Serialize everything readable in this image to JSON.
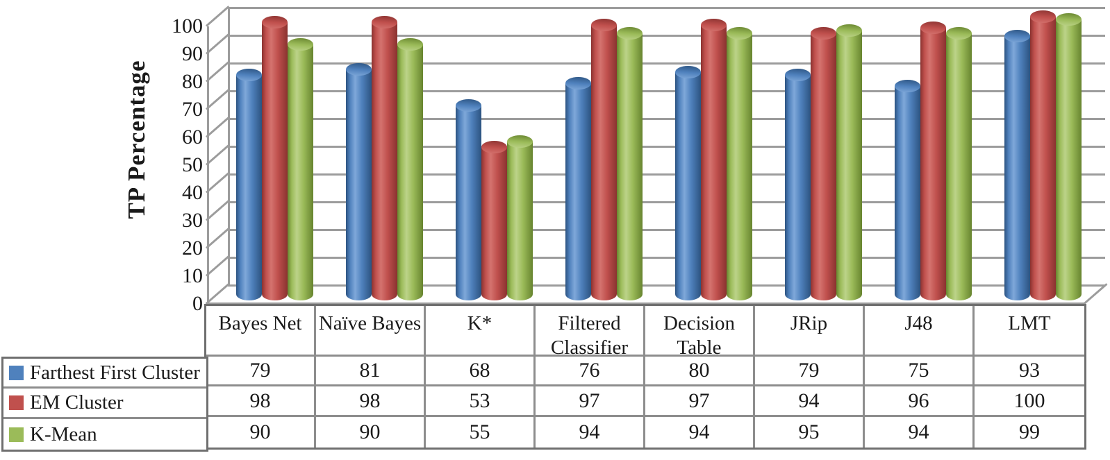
{
  "chart_data": {
    "type": "bar",
    "subtype": "3d-cylinder",
    "title": "",
    "xlabel": "",
    "ylabel": "TP Percentage",
    "ylim": [
      0,
      100
    ],
    "ytick_interval": 10,
    "yticks": [
      0,
      10,
      20,
      30,
      40,
      50,
      60,
      70,
      80,
      90,
      100
    ],
    "grid": true,
    "legend_position": "table-left",
    "categories": [
      "Bayes Net",
      "Naïve Bayes",
      "K*",
      "Filtered Classifier",
      "Decision Table",
      "JRip",
      "J48",
      "LMT"
    ],
    "series": [
      {
        "name": "Farthest First Cluster",
        "color": "#4F81BD",
        "color_light": "#7FA8D9",
        "color_dark": "#2C5380",
        "values": [
          79,
          81,
          68,
          76,
          80,
          79,
          75,
          93
        ]
      },
      {
        "name": "EM Cluster",
        "color": "#C0504D",
        "color_light": "#D4736F",
        "color_dark": "#8A3230",
        "values": [
          98,
          98,
          53,
          97,
          97,
          94,
          96,
          100
        ]
      },
      {
        "name": "K-Mean",
        "color": "#9BBB59",
        "color_light": "#BCD389",
        "color_dark": "#67842F",
        "values": [
          90,
          90,
          55,
          94,
          94,
          95,
          94,
          99
        ]
      }
    ]
  }
}
